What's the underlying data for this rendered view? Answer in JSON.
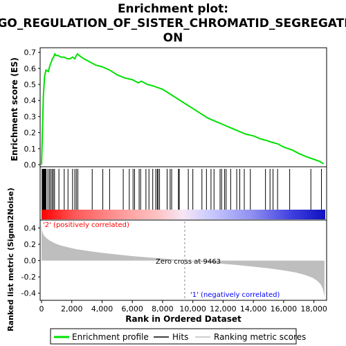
{
  "title_line1": "Enrichment plot:",
  "title_line2": "GO_REGULATION_OF_SISTER_CHROMATID_SEGREGATI",
  "title_line3": "ON",
  "colors": {
    "es_line": "#00e000",
    "hit": "#000000",
    "metric_fill": "#bebebe",
    "pos_label": "#ff0000",
    "neg_label": "#0000ff",
    "zero_line": "#8c8c8c"
  },
  "chart_data": [
    {
      "type": "line",
      "name": "es_panel",
      "ylabel": "Enrichment score (ES)",
      "ylim": [
        0.0,
        0.72
      ],
      "y_ticks": [
        "0.0",
        "0.1",
        "0.2",
        "0.3",
        "0.4",
        "0.5",
        "0.6",
        "0.7"
      ],
      "x_range": [
        0,
        18750
      ],
      "grid": false,
      "x": [
        0,
        60,
        120,
        200,
        300,
        450,
        560,
        650,
        720,
        800,
        880,
        960,
        1100,
        1300,
        1500,
        1700,
        1900,
        2050,
        2200,
        2300,
        2380,
        2500,
        2800,
        3200,
        3600,
        4000,
        4500,
        5000,
        5500,
        6000,
        6400,
        6600,
        7000,
        7400,
        7700,
        8000,
        8500,
        9000,
        9500,
        10000,
        10500,
        11000,
        11500,
        12000,
        12500,
        13000,
        13500,
        14000,
        14500,
        14900,
        15200,
        15600,
        16000,
        16300,
        16600,
        17000,
        17500,
        17800,
        18100,
        18400,
        18650
      ],
      "y": [
        0.0,
        0.2,
        0.42,
        0.55,
        0.59,
        0.58,
        0.62,
        0.64,
        0.66,
        0.67,
        0.69,
        0.68,
        0.68,
        0.67,
        0.67,
        0.66,
        0.66,
        0.67,
        0.66,
        0.68,
        0.69,
        0.68,
        0.66,
        0.64,
        0.62,
        0.61,
        0.59,
        0.56,
        0.54,
        0.53,
        0.51,
        0.52,
        0.5,
        0.49,
        0.48,
        0.47,
        0.44,
        0.41,
        0.38,
        0.35,
        0.32,
        0.29,
        0.27,
        0.25,
        0.23,
        0.21,
        0.19,
        0.18,
        0.16,
        0.15,
        0.14,
        0.13,
        0.11,
        0.1,
        0.09,
        0.07,
        0.05,
        0.04,
        0.03,
        0.02,
        0.005
      ]
    },
    {
      "type": "hits",
      "name": "hits_panel",
      "x_range": [
        0,
        18750
      ],
      "positions": [
        40,
        70,
        100,
        130,
        160,
        190,
        220,
        260,
        300,
        420,
        520,
        610,
        700,
        780,
        860,
        1150,
        1500,
        1750,
        2050,
        2200,
        2300,
        2400,
        3350,
        4050,
        4500,
        5400,
        5800,
        6050,
        6150,
        6450,
        6550,
        6900,
        7100,
        7350,
        7550,
        7650,
        7700,
        7800,
        8300,
        8500,
        8600,
        9050,
        9100,
        9700,
        10000,
        10600,
        10900,
        11200,
        11400,
        11800,
        11900,
        12100,
        12200,
        12500,
        12900,
        13100,
        13400,
        13800,
        14800,
        15100,
        15300,
        15600,
        16400,
        17800,
        18500
      ]
    },
    {
      "type": "area",
      "name": "metric_panel",
      "ylabel": "Ranked list metric (Signal2Noise)",
      "xlabel": "Rank in Ordered Dataset",
      "ylim": [
        -0.47,
        0.48
      ],
      "y_ticks": [
        "-0.4",
        "-0.2",
        "0.0",
        "0.2",
        "0.4"
      ],
      "x_range": [
        0,
        18750
      ],
      "x_ticks": [
        "0",
        "2,000",
        "4,000",
        "6,000",
        "8,000",
        "10,000",
        "12,000",
        "14,000",
        "16,000",
        "18,000"
      ],
      "x": [
        0,
        30,
        80,
        150,
        300,
        500,
        800,
        1200,
        1700,
        2300,
        3000,
        4000,
        5000,
        6000,
        7000,
        8000,
        9000,
        9463,
        10000,
        11000,
        12000,
        13000,
        14000,
        15000,
        16000,
        16800,
        17400,
        17900,
        18200,
        18450,
        18600,
        18700
      ],
      "y": [
        0.45,
        0.37,
        0.34,
        0.31,
        0.28,
        0.25,
        0.22,
        0.19,
        0.165,
        0.14,
        0.12,
        0.095,
        0.075,
        0.055,
        0.04,
        0.025,
        0.01,
        0.0,
        -0.01,
        -0.025,
        -0.04,
        -0.055,
        -0.075,
        -0.095,
        -0.12,
        -0.145,
        -0.175,
        -0.21,
        -0.245,
        -0.29,
        -0.35,
        -0.44
      ],
      "annotations": {
        "positive": "'2' (positively correlated)",
        "negative": "'1' (negatively correlated)",
        "zero_cross": "Zero cross at 9463"
      },
      "zero_cross_rank": 9463
    }
  ],
  "legend": {
    "items": [
      {
        "label": "Enrichment profile",
        "color": "#00e000"
      },
      {
        "label": "Hits",
        "color": "#000000"
      },
      {
        "label": "Ranking metric scores",
        "color": "#bebebe"
      }
    ]
  }
}
